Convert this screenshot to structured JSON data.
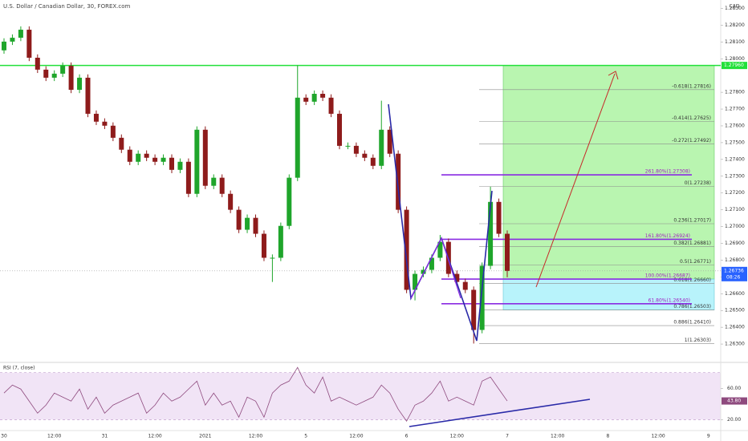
{
  "header": {
    "title": "U.S. Dollar / Canadian Dollar, 30, FOREX.com",
    "currency": "CAD"
  },
  "chart_data": {
    "type": "candlestick",
    "up_color": "#1fa52b",
    "down_color": "#8e1b1b",
    "open": [
      1.2805,
      1.28102,
      1.28125,
      1.28173,
      1.28006,
      1.27935,
      1.27887,
      1.27911,
      1.27958,
      1.27815,
      1.27887,
      1.27672,
      1.27625,
      1.27601,
      1.27529,
      1.27458,
      1.27386,
      1.27434,
      1.2741,
      1.27386,
      1.2741,
      1.27338,
      1.27386,
      1.27195,
      1.27577,
      1.27243,
      1.27291,
      1.27195,
      1.271,
      1.26981,
      1.27052,
      1.26957,
      1.26814,
      1.26814,
      1.27004,
      1.27291,
      1.27768,
      1.27744,
      1.27791,
      1.27768,
      1.27672,
      1.27481,
      1.27481,
      1.27434,
      1.2741,
      1.27362,
      1.27577,
      1.27434,
      1.271,
      1.26623,
      1.26718,
      1.26742,
      1.26814,
      1.26909,
      1.26718,
      1.2667,
      1.26623,
      1.26384,
      1.26766,
      1.27147,
      1.26957
    ],
    "high": [
      1.28122,
      1.28145,
      1.28193,
      1.28193,
      1.28026,
      1.27955,
      1.27931,
      1.27978,
      1.27978,
      1.27907,
      1.27907,
      1.27692,
      1.27645,
      1.27621,
      1.27549,
      1.27478,
      1.27454,
      1.27454,
      1.2743,
      1.2743,
      1.2743,
      1.27406,
      1.27406,
      1.27597,
      1.27597,
      1.27311,
      1.27311,
      1.27215,
      1.2712,
      1.27072,
      1.27072,
      1.26977,
      1.26834,
      1.27024,
      1.27311,
      1.2796,
      1.27788,
      1.27811,
      1.27811,
      1.27788,
      1.27692,
      1.27501,
      1.27501,
      1.27454,
      1.2743,
      1.2775,
      1.27597,
      1.27454,
      1.2712,
      1.26738,
      1.26762,
      1.26834,
      1.2695,
      1.26929,
      1.26738,
      1.2669,
      1.26643,
      1.26786,
      1.27238,
      1.27167,
      1.26977
    ],
    "low": [
      1.2803,
      1.28082,
      1.28105,
      1.27986,
      1.27915,
      1.27867,
      1.27867,
      1.27891,
      1.27795,
      1.27795,
      1.27652,
      1.27605,
      1.27581,
      1.27509,
      1.27438,
      1.27366,
      1.27366,
      1.2739,
      1.27366,
      1.27366,
      1.27318,
      1.27318,
      1.27175,
      1.27175,
      1.27223,
      1.27223,
      1.27175,
      1.2708,
      1.26961,
      1.26961,
      1.26937,
      1.26794,
      1.2667,
      1.26794,
      1.26984,
      1.27271,
      1.27724,
      1.27724,
      1.27748,
      1.27652,
      1.27461,
      1.27461,
      1.27414,
      1.2739,
      1.27342,
      1.27342,
      1.27414,
      1.2708,
      1.26603,
      1.2656,
      1.26698,
      1.26722,
      1.26794,
      1.26698,
      1.2665,
      1.26603,
      1.26303,
      1.26364,
      1.26746,
      1.26937,
      1.26698
    ],
    "close": [
      1.28102,
      1.28125,
      1.28173,
      1.28006,
      1.27935,
      1.27887,
      1.27911,
      1.27958,
      1.27815,
      1.27887,
      1.27672,
      1.27625,
      1.27601,
      1.27529,
      1.27458,
      1.27386,
      1.27434,
      1.2741,
      1.27386,
      1.2741,
      1.27338,
      1.27386,
      1.27195,
      1.27577,
      1.27243,
      1.27291,
      1.27195,
      1.271,
      1.26981,
      1.27052,
      1.26957,
      1.26814,
      1.26814,
      1.27004,
      1.27291,
      1.27768,
      1.27744,
      1.27791,
      1.27768,
      1.27672,
      1.27481,
      1.27481,
      1.27434,
      1.2741,
      1.27362,
      1.27577,
      1.27434,
      1.271,
      1.26623,
      1.26718,
      1.26742,
      1.26814,
      1.26909,
      1.26718,
      1.2667,
      1.26623,
      1.26384,
      1.26766,
      1.27147,
      1.26957,
      1.26736
    ],
    "ylim": [
      1.262,
      1.2835
    ],
    "yticks": [
      {
        "value": 1.263,
        "label": "1.26300"
      },
      {
        "value": 1.264,
        "label": "1.26400"
      },
      {
        "value": 1.265,
        "label": "1.26500"
      },
      {
        "value": 1.266,
        "label": "1.26600"
      },
      {
        "value": 1.267,
        "label": "1.26700"
      },
      {
        "value": 1.268,
        "label": "1.26800"
      },
      {
        "value": 1.269,
        "label": "1.26900"
      },
      {
        "value": 1.27,
        "label": "1.27000"
      },
      {
        "value": 1.271,
        "label": "1.27100"
      },
      {
        "value": 1.272,
        "label": "1.27200"
      },
      {
        "value": 1.273,
        "label": "1.27300"
      },
      {
        "value": 1.274,
        "label": "1.27400"
      },
      {
        "value": 1.275,
        "label": "1.27500"
      },
      {
        "value": 1.276,
        "label": "1.27600"
      },
      {
        "value": 1.277,
        "label": "1.27700"
      },
      {
        "value": 1.278,
        "label": "1.27800"
      },
      {
        "value": 1.28,
        "label": "1.28000"
      },
      {
        "value": 1.281,
        "label": "1.28100"
      },
      {
        "value": 1.282,
        "label": "1.28200"
      },
      {
        "value": 1.283,
        "label": "1.28300"
      }
    ],
    "x_labels": [
      "30",
      "12:00",
      "31",
      "12:00",
      "2021",
      "12:00",
      "5",
      "12:00",
      "6",
      "12:00",
      "7",
      "12:00",
      "8",
      "12:00",
      "9"
    ],
    "last_price": {
      "value": 1.26736,
      "label": "1.26736"
    },
    "countdown": "08:26",
    "horizontal_line": {
      "value": 1.2796,
      "label": "1.27960",
      "color": "#22e03a"
    },
    "fib_levels": [
      {
        "value": 1.27816,
        "label": "-0.618(1.27816)"
      },
      {
        "value": 1.27625,
        "label": "-0.414(1.27625)"
      },
      {
        "value": 1.27492,
        "label": "-0.272(1.27492)"
      },
      {
        "value": 1.27238,
        "label": "0(1.27238)"
      },
      {
        "value": 1.27017,
        "label": "0.236(1.27017)"
      },
      {
        "value": 1.26881,
        "label": "0.382(1.26881)"
      },
      {
        "value": 1.26771,
        "label": "0.5(1.26771)"
      },
      {
        "value": 1.2666,
        "label": "0.618(1.26660)"
      },
      {
        "value": 1.26503,
        "label": "0.786(1.26503)"
      },
      {
        "value": 1.2641,
        "label": "0.886(1.26410)"
      },
      {
        "value": 1.26303,
        "label": "1(1.26303)"
      }
    ],
    "fib_extension": [
      {
        "value": 1.27308,
        "label": "261.80%(1.27308)"
      },
      {
        "value": 1.26924,
        "label": "161.80%(1.26924)"
      },
      {
        "value": 1.26687,
        "label": "100.00%(1.26687)"
      },
      {
        "value": 1.2654,
        "label": "61.80%(1.26540)"
      }
    ],
    "rsi": {
      "title": "RSI (7, close)",
      "color": "#8e4a7e",
      "values": [
        53.9,
        64.1,
        59.0,
        43.6,
        28.2,
        38.5,
        53.9,
        48.7,
        43.6,
        59.0,
        33.3,
        48.7,
        28.2,
        38.5,
        43.6,
        48.7,
        53.9,
        28.2,
        38.5,
        53.9,
        43.6,
        48.7,
        59.0,
        69.2,
        38.5,
        53.9,
        38.5,
        43.6,
        23.1,
        48.7,
        43.6,
        23.1,
        53.9,
        64.1,
        69.2,
        86.7,
        64.1,
        53.9,
        74.4,
        43.6,
        48.7,
        43.6,
        38.5,
        43.6,
        48.7,
        64.1,
        53.9,
        33.3,
        18.0,
        38.5,
        43.6,
        53.9,
        69.2,
        43.6,
        48.7,
        43.6,
        38.5,
        69.2,
        74.4,
        59.0,
        43.8
      ],
      "ylim": [
        8,
        90
      ],
      "yticks": [
        {
          "value": 60,
          "label": "60.00"
        },
        {
          "value": 20,
          "label": "20.00"
        }
      ],
      "band": [
        20,
        80
      ],
      "last": {
        "value": 43.8,
        "label": "43.80"
      }
    }
  }
}
